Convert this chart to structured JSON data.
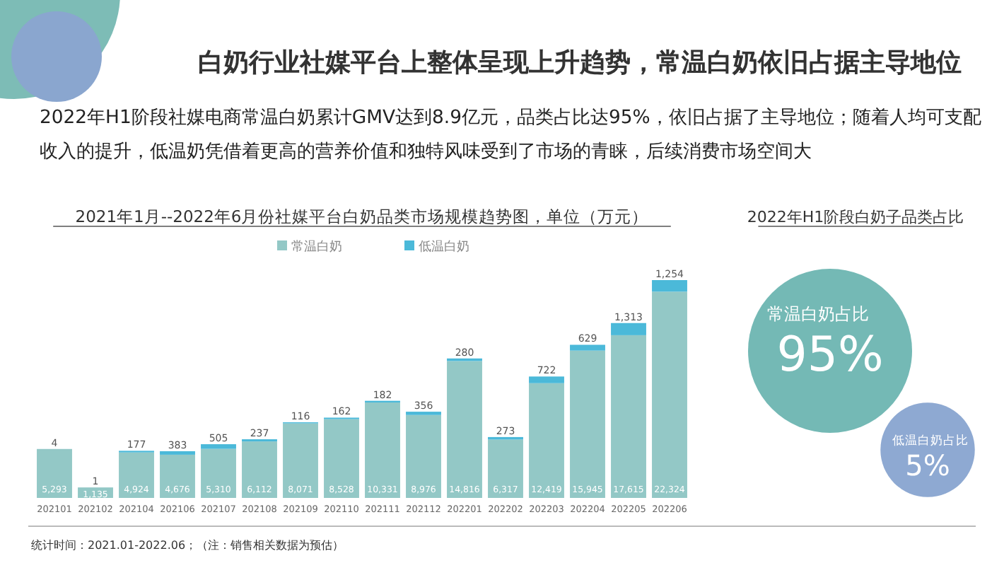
{
  "chart_data": [
    {
      "type": "other",
      "title": "白奶行业社媒平台上整体呈现上升趋势，常温白奶依旧占据主导地位",
      "subtitle": "2022年H1阶段社媒电商常温白奶累计GMV达到8.9亿元，品类占比达95%，依旧占据了主导地位；随着人均可支配收入的提升，低温奶凭借着更高的营养价值和独特风味受到了市场的青睐，后续消费市场空间大",
      "annotations": [
        "统计时间：2021.01-2022.06；（注：销售相关数据为预估）"
      ]
    },
    {
      "type": "bar",
      "stacked": true,
      "title": "2021年1月--2022年6月份社媒平台白奶品类市场规模趋势图，单位（万元）",
      "legend": "top",
      "data_labels": true,
      "categories": [
        "202101",
        "202102",
        "202104",
        "202106",
        "202107",
        "202108",
        "202109",
        "202110",
        "202111",
        "202112",
        "202201",
        "202202",
        "202203",
        "202204",
        "202205",
        "202206"
      ],
      "series": [
        {
          "name": "常温白奶",
          "color": "#93c8c6",
          "values": [
            5293,
            1135,
            4924,
            4676,
            5310,
            6112,
            8071,
            8528,
            10331,
            8976,
            14816,
            6317,
            12419,
            15945,
            17615,
            22324
          ],
          "value_labels": [
            "5,293",
            "1,135",
            "4,924",
            "4,676",
            "5,310",
            "6,112",
            "8,071",
            "8,528",
            "10,331",
            "8,976",
            "14,816",
            "6,317",
            "12,419",
            "15,945",
            "17,615",
            "22,324"
          ]
        },
        {
          "name": "低温白奶",
          "color": "#4bb9d9",
          "values": [
            4,
            1,
            177,
            383,
            505,
            237,
            116,
            162,
            182,
            356,
            280,
            273,
            722,
            629,
            1313,
            1254
          ],
          "value_labels": [
            "4",
            "1",
            "177",
            "383",
            "505",
            "237",
            "116",
            "162",
            "182",
            "356",
            "280",
            "273",
            "722",
            "629",
            "1,313",
            "1,254"
          ]
        }
      ]
    },
    {
      "type": "other",
      "title": "2022年H1阶段白奶子品类占比",
      "categories": [
        "常温白奶占比",
        "低温白奶占比"
      ],
      "values": [
        95,
        5
      ],
      "value_labels": [
        "95%",
        "5%"
      ],
      "colors": [
        "#74b9b5",
        "#8ea9d2"
      ]
    }
  ]
}
